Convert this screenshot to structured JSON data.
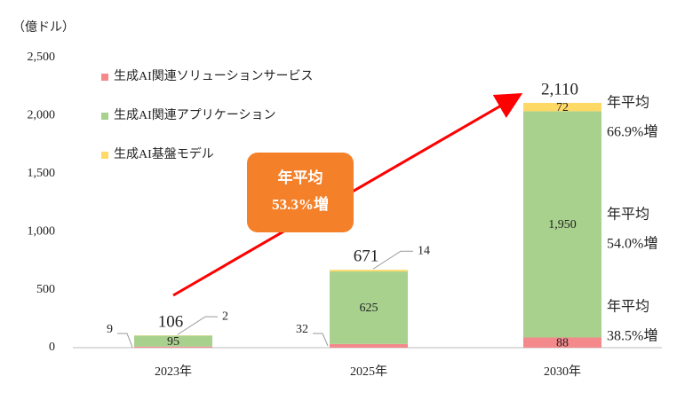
{
  "chart_data": {
    "type": "stacked-bar",
    "unit_label": "（億ドル）",
    "categories": [
      "2023年",
      "2025年",
      "2030年"
    ],
    "series": [
      {
        "name": "生成AI関連ソリューションサービス",
        "color": "#f4898c",
        "values": [
          9,
          32,
          88
        ],
        "growth": [
          "年平均",
          "38.5%増"
        ]
      },
      {
        "name": "生成AI関連アプリケーション",
        "color": "#a9d18e",
        "values": [
          95,
          625,
          1950
        ],
        "value_labels": [
          "95",
          "625",
          "1,950"
        ],
        "growth": [
          "年平均",
          "54.0%増"
        ]
      },
      {
        "name": "生成AI基盤モデル",
        "color": "#ffd966",
        "values": [
          2,
          14,
          72
        ],
        "growth": [
          "年平均",
          "66.9%増"
        ]
      }
    ],
    "totals": [
      106,
      671,
      2110
    ],
    "total_labels": [
      "106",
      "671",
      "2,110"
    ],
    "overall_growth": [
      "年平均",
      "53.3%増"
    ],
    "ylim": [
      0,
      2500
    ],
    "yticks": [
      0,
      500,
      {
        "value": 1000,
        "label": "1,000"
      },
      {
        "value": 1500,
        "label": "1,500"
      },
      {
        "value": 2000,
        "label": "2,000"
      },
      {
        "value": 2500,
        "label": "2,500"
      }
    ]
  }
}
